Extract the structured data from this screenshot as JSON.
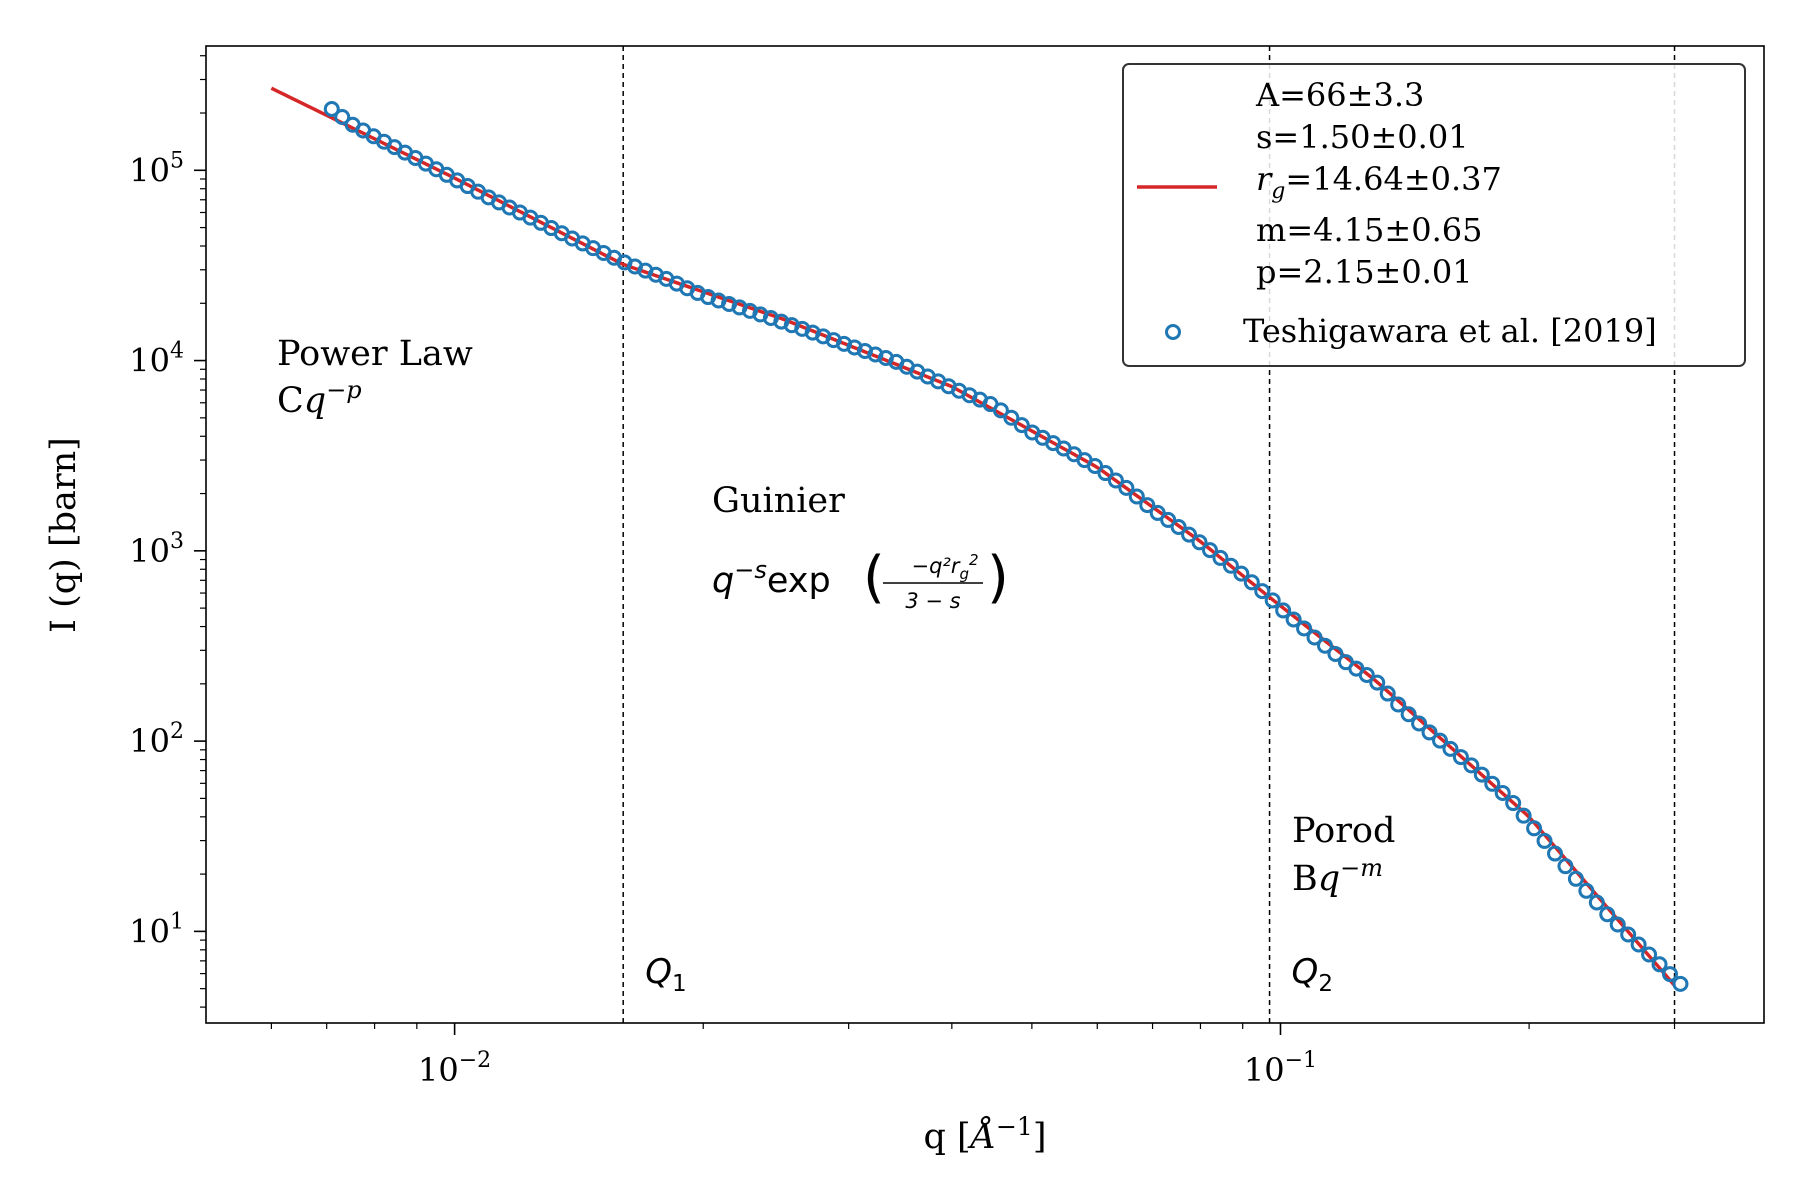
{
  "chart_data": {
    "type": "scatter",
    "xlabel": "q [Å⁻¹]",
    "ylabel": "I (q) [barn]",
    "xscale": "log",
    "yscale": "log",
    "xlim": [
      0.005,
      0.385
    ],
    "ylim": [
      3.3,
      450000
    ],
    "x_ticks": [
      {
        "value": 0.01,
        "mantissa": "10",
        "exp": "−2"
      },
      {
        "value": 0.1,
        "mantissa": "10",
        "exp": "−1"
      }
    ],
    "y_ticks": [
      {
        "value": 10,
        "mantissa": "10",
        "exp": "1"
      },
      {
        "value": 100,
        "mantissa": "10",
        "exp": "2"
      },
      {
        "value": 1000,
        "mantissa": "10",
        "exp": "3"
      },
      {
        "value": 10000,
        "mantissa": "10",
        "exp": "4"
      },
      {
        "value": 100000,
        "mantissa": "10",
        "exp": "5"
      }
    ],
    "grid": false,
    "legend_position": "top-right",
    "fit": {
      "color": "#d62728",
      "params": [
        "A=66±3.3",
        "s=1.50±0.01",
        "rg=14.64±0.37",
        "m=4.15±0.65",
        "p=2.15±0.01"
      ],
      "x": [
        0.006,
        0.01,
        0.016,
        0.025,
        0.04,
        0.06,
        0.08,
        0.097,
        0.13,
        0.2,
        0.3
      ],
      "y": [
        270000,
        91000,
        32000,
        16500,
        7300,
        2750,
        1120,
        570,
        210,
        40,
        5.2
      ]
    },
    "series": [
      {
        "name": "Teshigawara et al. [2019]",
        "color": "#1f77b4",
        "marker": "open-circle",
        "x_range": [
          0.0071,
          0.305
        ],
        "count": 130,
        "x": [
          0.0071,
          0.0075,
          0.008,
          0.009,
          0.01,
          0.011,
          0.0125,
          0.014,
          0.016,
          0.018,
          0.02,
          0.023,
          0.026,
          0.03,
          0.034,
          0.04,
          0.045,
          0.05,
          0.055,
          0.06,
          0.065,
          0.07,
          0.075,
          0.08,
          0.09,
          0.097,
          0.1,
          0.11,
          0.12,
          0.13,
          0.14,
          0.15,
          0.17,
          0.19,
          0.21,
          0.23,
          0.25,
          0.28,
          0.305
        ],
        "y": [
          210000,
          175000,
          150000,
          115000,
          90000,
          72000,
          55000,
          43000,
          33000,
          27000,
          22000,
          18000,
          15000,
          12000,
          10000,
          7200,
          5800,
          4200,
          3400,
          2750,
          2150,
          1650,
          1350,
          1100,
          750,
          570,
          500,
          350,
          260,
          210,
          150,
          115,
          75,
          49,
          29,
          18,
          12,
          7.5,
          5.3
        ]
      }
    ],
    "vlines": [
      {
        "x": 0.016,
        "label": "Q",
        "sub": "1"
      },
      {
        "x": 0.097,
        "label": "Q",
        "sub": "2"
      },
      {
        "x": 0.3,
        "label": "",
        "sub": ""
      }
    ],
    "annotations": {
      "power_law_title": "Power Law",
      "power_law_formula_prefix": "C",
      "power_law_formula_var": "q",
      "power_law_formula_exp": "−p",
      "guinier_title": "Guinier",
      "guinier_formula_prefix": "q",
      "guinier_formula_exp": "−s",
      "guinier_formula_func": "exp",
      "guinier_numerator": "−q²r",
      "guinier_numerator_sub": "g",
      "guinier_numerator_sup": "2",
      "guinier_denominator": "3 − s",
      "porod_title": "Porod",
      "porod_formula_prefix": "B",
      "porod_formula_var": "q",
      "porod_formula_exp": "−m"
    },
    "legend": {
      "line1": "A=66±3.3",
      "line2": "s=1.50±0.01",
      "line3_var": "r",
      "line3_sub": "g",
      "line3_rest": "=14.64±0.37",
      "line4": "m=4.15±0.65",
      "line5": "p=2.15±0.01",
      "scatter_label": "Teshigawara et al. [2019]"
    }
  }
}
